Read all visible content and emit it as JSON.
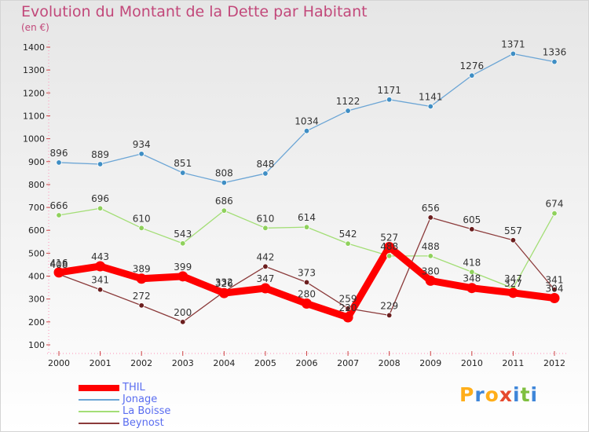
{
  "header": {
    "title": "Evolution du Montant de la Dette par Habitant",
    "subtitle": "(en €)"
  },
  "logo": {
    "letters": [
      "P",
      "r",
      "o",
      "x",
      "i",
      "t",
      "i"
    ],
    "colors": [
      "#ffae1a",
      "#3f86d9",
      "#ffae1a",
      "#e64a2e",
      "#3f86d9",
      "#7fbf3f",
      "#3f86d9"
    ]
  },
  "chart_data": {
    "type": "line",
    "categories": [
      "2000",
      "2001",
      "2002",
      "2003",
      "2004",
      "2005",
      "2006",
      "2007",
      "2008",
      "2009",
      "2010",
      "2011",
      "2012"
    ],
    "ylim": [
      100,
      1400
    ],
    "yticks": [
      100,
      200,
      300,
      400,
      500,
      600,
      700,
      800,
      900,
      1000,
      1100,
      1200,
      1300,
      1400
    ],
    "grid": "none",
    "legend_position": "bottom-left",
    "series": [
      {
        "name": "Jonage",
        "color": "#3f8ec4",
        "line_color": "#6ba5d5",
        "values": [
          896,
          889,
          934,
          851,
          808,
          848,
          1034,
          1122,
          1171,
          1141,
          1276,
          1371,
          1336
        ]
      },
      {
        "name": "La Boisse",
        "color": "#8fd15c",
        "line_color": "#a3de76",
        "values": [
          666,
          696,
          610,
          543,
          686,
          610,
          614,
          542,
          488,
          488,
          418,
          347,
          674
        ]
      },
      {
        "name": "Beynost",
        "color": "#6b1e1e",
        "line_color": "#8b3a3a",
        "values": [
          408,
          341,
          272,
          200,
          332,
          442,
          373,
          259,
          229,
          656,
          605,
          557,
          341
        ]
      },
      {
        "name": "THIL",
        "color": "#ff0000",
        "line_color": "#ff0000",
        "values": [
          416,
          443,
          389,
          399,
          326,
          347,
          280,
          220,
          527,
          380,
          348,
          327,
          304
        ]
      }
    ]
  }
}
